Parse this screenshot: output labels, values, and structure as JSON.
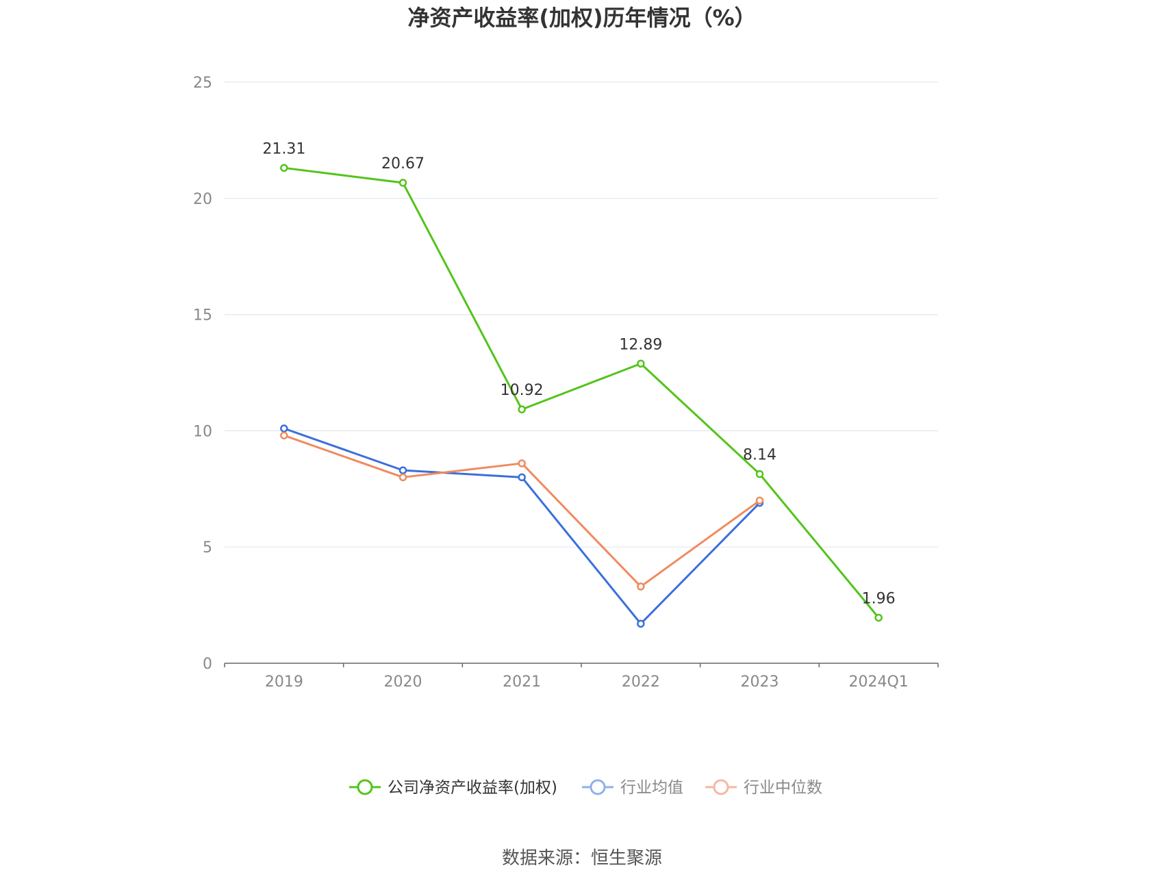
{
  "chart_data": {
    "type": "line",
    "title": "净资产收益率(加权)历年情况（%）",
    "categories": [
      "2019",
      "2020",
      "2021",
      "2022",
      "2023",
      "2024Q1"
    ],
    "ylim": [
      0,
      25
    ],
    "yticks": [
      0,
      5,
      10,
      15,
      20,
      25
    ],
    "grid": true,
    "legend_position": "bottom",
    "series": [
      {
        "name": "公司净资产收益率(加权)",
        "color": "#52c41a",
        "values": [
          21.31,
          20.67,
          10.92,
          12.89,
          8.14,
          1.96
        ],
        "labels": [
          "21.31",
          "20.67",
          "10.92",
          "12.89",
          "8.14",
          "1.96"
        ],
        "show_labels": true
      },
      {
        "name": "行业均值",
        "color": "#3a6fdb",
        "legend_color": "#8fb0ef",
        "values": [
          10.1,
          8.3,
          8.0,
          1.7,
          6.9,
          null
        ],
        "show_labels": false
      },
      {
        "name": "行业中位数",
        "color": "#f08a5d",
        "legend_color": "#f5b8a0",
        "values": [
          9.8,
          8.0,
          8.6,
          3.3,
          7.0,
          null
        ],
        "show_labels": false
      }
    ]
  },
  "source_text": "数据来源：恒生聚源"
}
